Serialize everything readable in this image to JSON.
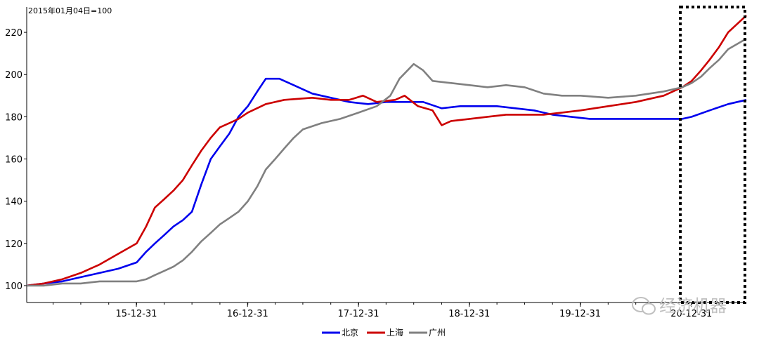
{
  "watermark": "经济机器",
  "chart_data": {
    "type": "line",
    "index_note": "2015年01月04日=100",
    "ylim": [
      92,
      232
    ],
    "y_ticks": [
      100,
      120,
      140,
      160,
      180,
      200,
      220
    ],
    "x_range": [
      "2015-01-04",
      "2021-06-30"
    ],
    "x_ticks": [
      {
        "label": "15-12-31",
        "date": "2015-12-31"
      },
      {
        "label": "16-12-31",
        "date": "2016-12-31"
      },
      {
        "label": "17-12-31",
        "date": "2017-12-31"
      },
      {
        "label": "18-12-31",
        "date": "2018-12-31"
      },
      {
        "label": "19-12-31",
        "date": "2019-12-31"
      },
      {
        "label": "20-12-31",
        "date": "2020-12-31"
      }
    ],
    "series": [
      {
        "name": "北京",
        "color": "#0000ee",
        "points": [
          [
            "2015-01-04",
            100
          ],
          [
            "2015-03-01",
            101
          ],
          [
            "2015-05-01",
            102
          ],
          [
            "2015-07-01",
            104
          ],
          [
            "2015-09-01",
            106
          ],
          [
            "2015-11-01",
            108
          ],
          [
            "2016-01-01",
            111
          ],
          [
            "2016-02-01",
            116
          ],
          [
            "2016-03-01",
            120
          ],
          [
            "2016-04-01",
            124
          ],
          [
            "2016-05-01",
            128
          ],
          [
            "2016-06-01",
            131
          ],
          [
            "2016-07-01",
            135
          ],
          [
            "2016-08-01",
            148
          ],
          [
            "2016-09-01",
            160
          ],
          [
            "2016-10-01",
            166
          ],
          [
            "2016-11-01",
            172
          ],
          [
            "2016-12-01",
            180
          ],
          [
            "2017-01-01",
            185
          ],
          [
            "2017-02-01",
            192
          ],
          [
            "2017-03-01",
            198
          ],
          [
            "2017-04-15",
            198
          ],
          [
            "2017-06-01",
            195
          ],
          [
            "2017-08-01",
            191
          ],
          [
            "2017-10-01",
            189
          ],
          [
            "2017-12-01",
            187
          ],
          [
            "2018-02-01",
            186
          ],
          [
            "2018-04-01",
            187
          ],
          [
            "2018-06-01",
            187
          ],
          [
            "2018-08-01",
            187
          ],
          [
            "2018-10-01",
            184
          ],
          [
            "2018-12-01",
            185
          ],
          [
            "2019-02-01",
            185
          ],
          [
            "2019-04-01",
            185
          ],
          [
            "2019-06-01",
            184
          ],
          [
            "2019-08-01",
            183
          ],
          [
            "2019-10-01",
            181
          ],
          [
            "2019-12-01",
            180
          ],
          [
            "2020-02-01",
            179
          ],
          [
            "2020-06-01",
            179
          ],
          [
            "2020-10-01",
            179
          ],
          [
            "2020-12-01",
            179
          ],
          [
            "2021-01-01",
            180
          ],
          [
            "2021-03-01",
            183
          ],
          [
            "2021-05-01",
            186
          ],
          [
            "2021-06-30",
            188
          ]
        ]
      },
      {
        "name": "上海",
        "color": "#cc0000",
        "points": [
          [
            "2015-01-04",
            100
          ],
          [
            "2015-03-01",
            101
          ],
          [
            "2015-05-01",
            103
          ],
          [
            "2015-07-01",
            106
          ],
          [
            "2015-09-01",
            110
          ],
          [
            "2015-11-01",
            115
          ],
          [
            "2016-01-01",
            120
          ],
          [
            "2016-02-01",
            128
          ],
          [
            "2016-03-01",
            137
          ],
          [
            "2016-04-01",
            141
          ],
          [
            "2016-05-01",
            145
          ],
          [
            "2016-06-01",
            150
          ],
          [
            "2016-07-01",
            157
          ],
          [
            "2016-08-01",
            164
          ],
          [
            "2016-09-01",
            170
          ],
          [
            "2016-10-01",
            175
          ],
          [
            "2016-11-01",
            177
          ],
          [
            "2016-12-01",
            179
          ],
          [
            "2017-01-01",
            182
          ],
          [
            "2017-03-01",
            186
          ],
          [
            "2017-05-01",
            188
          ],
          [
            "2017-08-01",
            189
          ],
          [
            "2017-10-01",
            188
          ],
          [
            "2017-12-01",
            188
          ],
          [
            "2018-01-15",
            190
          ],
          [
            "2018-03-01",
            187
          ],
          [
            "2018-05-01",
            188
          ],
          [
            "2018-06-01",
            190
          ],
          [
            "2018-07-15",
            185
          ],
          [
            "2018-09-01",
            183
          ],
          [
            "2018-10-01",
            176
          ],
          [
            "2018-11-01",
            178
          ],
          [
            "2019-01-01",
            179
          ],
          [
            "2019-03-01",
            180
          ],
          [
            "2019-05-01",
            181
          ],
          [
            "2019-07-01",
            181
          ],
          [
            "2019-09-01",
            181
          ],
          [
            "2019-11-01",
            182
          ],
          [
            "2020-01-01",
            183
          ],
          [
            "2020-04-01",
            185
          ],
          [
            "2020-07-01",
            187
          ],
          [
            "2020-10-01",
            190
          ],
          [
            "2020-12-01",
            194
          ],
          [
            "2021-01-01",
            197
          ],
          [
            "2021-02-01",
            202
          ],
          [
            "2021-03-01",
            207
          ],
          [
            "2021-04-01",
            213
          ],
          [
            "2021-05-01",
            220
          ],
          [
            "2021-06-30",
            228
          ]
        ]
      },
      {
        "name": "广州",
        "color": "#808080",
        "points": [
          [
            "2015-01-04",
            100
          ],
          [
            "2015-03-01",
            100
          ],
          [
            "2015-05-01",
            101
          ],
          [
            "2015-07-01",
            101
          ],
          [
            "2015-09-01",
            102
          ],
          [
            "2015-11-01",
            102
          ],
          [
            "2016-01-01",
            102
          ],
          [
            "2016-02-01",
            103
          ],
          [
            "2016-03-01",
            105
          ],
          [
            "2016-04-01",
            107
          ],
          [
            "2016-05-01",
            109
          ],
          [
            "2016-06-01",
            112
          ],
          [
            "2016-07-01",
            116
          ],
          [
            "2016-08-01",
            121
          ],
          [
            "2016-09-01",
            125
          ],
          [
            "2016-10-01",
            129
          ],
          [
            "2016-11-01",
            132
          ],
          [
            "2016-12-01",
            135
          ],
          [
            "2017-01-01",
            140
          ],
          [
            "2017-02-01",
            147
          ],
          [
            "2017-03-01",
            155
          ],
          [
            "2017-04-01",
            160
          ],
          [
            "2017-05-01",
            165
          ],
          [
            "2017-06-01",
            170
          ],
          [
            "2017-07-01",
            174
          ],
          [
            "2017-09-01",
            177
          ],
          [
            "2017-11-01",
            179
          ],
          [
            "2018-01-01",
            182
          ],
          [
            "2018-03-01",
            185
          ],
          [
            "2018-04-15",
            190
          ],
          [
            "2018-05-15",
            198
          ],
          [
            "2018-07-01",
            205
          ],
          [
            "2018-08-01",
            202
          ],
          [
            "2018-09-01",
            197
          ],
          [
            "2018-11-01",
            196
          ],
          [
            "2019-01-01",
            195
          ],
          [
            "2019-03-01",
            194
          ],
          [
            "2019-05-01",
            195
          ],
          [
            "2019-07-01",
            194
          ],
          [
            "2019-09-01",
            191
          ],
          [
            "2019-11-01",
            190
          ],
          [
            "2020-01-01",
            190
          ],
          [
            "2020-04-01",
            189
          ],
          [
            "2020-07-01",
            190
          ],
          [
            "2020-10-01",
            192
          ],
          [
            "2020-12-01",
            194
          ],
          [
            "2021-01-01",
            196
          ],
          [
            "2021-02-01",
            199
          ],
          [
            "2021-03-01",
            203
          ],
          [
            "2021-04-01",
            207
          ],
          [
            "2021-05-01",
            212
          ],
          [
            "2021-06-30",
            217
          ]
        ]
      }
    ]
  }
}
